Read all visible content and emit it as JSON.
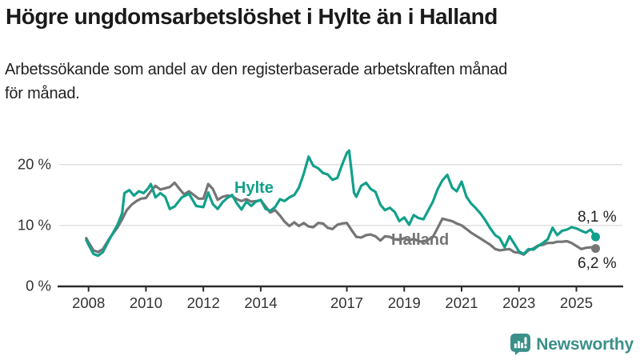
{
  "header": {
    "title": "Högre ungdomsarbetslöshet i Hylte än i Halland",
    "subtitle_lines": [
      "Arbetssökande som andel av den registerbaserade arbetskraften månad",
      "för månad."
    ]
  },
  "chart_data": {
    "type": "line",
    "unit": "%",
    "x_axis": {
      "ticks": [
        2008,
        2010,
        2012,
        2014,
        2017,
        2019,
        2021,
        2023,
        2025
      ],
      "range": [
        2007.9,
        2026.3
      ]
    },
    "y_axis": {
      "ticks": [
        {
          "value": 0,
          "label": "0 %"
        },
        {
          "value": 10,
          "label": "10 %"
        },
        {
          "value": 20,
          "label": "20 %"
        }
      ],
      "range": [
        0,
        24
      ],
      "gridlines": [
        10,
        20
      ],
      "grid_color": "#e0e0e0"
    },
    "series": [
      {
        "name": "Halland",
        "color": "#757575",
        "end_label": "6,2 %",
        "end_value": 6.2,
        "points": [
          [
            2007.92,
            7.9
          ],
          [
            2008.0,
            7.2
          ],
          [
            2008.17,
            5.9
          ],
          [
            2008.33,
            5.6
          ],
          [
            2008.5,
            6.1
          ],
          [
            2008.75,
            8.0
          ],
          [
            2009.0,
            9.6
          ],
          [
            2009.17,
            11.0
          ],
          [
            2009.33,
            12.5
          ],
          [
            2009.5,
            13.4
          ],
          [
            2009.67,
            14.0
          ],
          [
            2009.83,
            14.4
          ],
          [
            2010.0,
            14.5
          ],
          [
            2010.17,
            15.6
          ],
          [
            2010.33,
            16.5
          ],
          [
            2010.5,
            15.9
          ],
          [
            2010.67,
            16.1
          ],
          [
            2010.83,
            16.3
          ],
          [
            2011.0,
            17.0
          ],
          [
            2011.17,
            16.0
          ],
          [
            2011.33,
            15.1
          ],
          [
            2011.5,
            15.6
          ],
          [
            2011.67,
            15.0
          ],
          [
            2011.83,
            14.4
          ],
          [
            2012.0,
            14.4
          ],
          [
            2012.17,
            16.8
          ],
          [
            2012.33,
            16.0
          ],
          [
            2012.5,
            14.2
          ],
          [
            2012.67,
            14.7
          ],
          [
            2012.83,
            14.9
          ],
          [
            2013.0,
            14.8
          ],
          [
            2013.17,
            14.3
          ],
          [
            2013.33,
            14.0
          ],
          [
            2013.5,
            14.3
          ],
          [
            2013.67,
            13.9
          ],
          [
            2013.83,
            14.0
          ],
          [
            2014.0,
            14.1
          ],
          [
            2014.17,
            13.1
          ],
          [
            2014.33,
            12.1
          ],
          [
            2014.5,
            12.5
          ],
          [
            2014.67,
            11.6
          ],
          [
            2014.83,
            10.6
          ],
          [
            2015.0,
            9.9
          ],
          [
            2015.17,
            10.5
          ],
          [
            2015.33,
            9.9
          ],
          [
            2015.5,
            10.4
          ],
          [
            2015.67,
            9.8
          ],
          [
            2015.83,
            9.7
          ],
          [
            2016.0,
            10.4
          ],
          [
            2016.17,
            10.3
          ],
          [
            2016.33,
            9.6
          ],
          [
            2016.5,
            9.4
          ],
          [
            2016.67,
            10.1
          ],
          [
            2016.83,
            10.3
          ],
          [
            2017.0,
            10.4
          ],
          [
            2017.17,
            9.2
          ],
          [
            2017.33,
            8.1
          ],
          [
            2017.5,
            8.0
          ],
          [
            2017.67,
            8.4
          ],
          [
            2017.83,
            8.5
          ],
          [
            2018.0,
            8.2
          ],
          [
            2018.17,
            7.5
          ],
          [
            2018.33,
            8.2
          ],
          [
            2018.5,
            8.1
          ],
          [
            2018.67,
            7.7
          ],
          [
            2018.83,
            7.6
          ],
          [
            2019.0,
            7.9
          ],
          [
            2019.17,
            7.5
          ],
          [
            2019.33,
            7.8
          ],
          [
            2019.5,
            7.4
          ],
          [
            2019.67,
            7.3
          ],
          [
            2019.83,
            7.6
          ],
          [
            2020.0,
            8.1
          ],
          [
            2020.17,
            9.6
          ],
          [
            2020.33,
            11.1
          ],
          [
            2020.5,
            10.9
          ],
          [
            2020.67,
            10.7
          ],
          [
            2020.83,
            10.3
          ],
          [
            2021.0,
            10.0
          ],
          [
            2021.17,
            9.4
          ],
          [
            2021.33,
            8.8
          ],
          [
            2021.5,
            8.3
          ],
          [
            2021.67,
            7.8
          ],
          [
            2021.83,
            7.3
          ],
          [
            2022.0,
            6.8
          ],
          [
            2022.17,
            6.1
          ],
          [
            2022.33,
            5.9
          ],
          [
            2022.5,
            6.0
          ],
          [
            2022.67,
            6.1
          ],
          [
            2022.83,
            5.6
          ],
          [
            2023.0,
            5.5
          ],
          [
            2023.17,
            5.2
          ],
          [
            2023.33,
            5.9
          ],
          [
            2023.5,
            6.2
          ],
          [
            2023.67,
            6.7
          ],
          [
            2023.83,
            6.8
          ],
          [
            2024.0,
            7.1
          ],
          [
            2024.17,
            7.1
          ],
          [
            2024.33,
            7.3
          ],
          [
            2024.5,
            7.3
          ],
          [
            2024.67,
            7.4
          ],
          [
            2024.83,
            7.1
          ],
          [
            2025.0,
            6.6
          ],
          [
            2025.17,
            6.1
          ],
          [
            2025.33,
            6.3
          ],
          [
            2025.5,
            6.4
          ],
          [
            2025.67,
            6.2
          ]
        ]
      },
      {
        "name": "Hylte",
        "color": "#12a08b",
        "end_label": "8,1 %",
        "end_value": 8.1,
        "points": [
          [
            2007.92,
            7.6
          ],
          [
            2008.0,
            6.8
          ],
          [
            2008.17,
            5.3
          ],
          [
            2008.33,
            5.0
          ],
          [
            2008.5,
            5.6
          ],
          [
            2008.75,
            7.9
          ],
          [
            2009.0,
            10.0
          ],
          [
            2009.17,
            12.0
          ],
          [
            2009.25,
            15.3
          ],
          [
            2009.42,
            15.8
          ],
          [
            2009.58,
            14.9
          ],
          [
            2009.75,
            15.6
          ],
          [
            2009.92,
            15.3
          ],
          [
            2010.08,
            16.1
          ],
          [
            2010.17,
            16.8
          ],
          [
            2010.33,
            14.6
          ],
          [
            2010.5,
            15.3
          ],
          [
            2010.67,
            14.7
          ],
          [
            2010.83,
            12.7
          ],
          [
            2011.0,
            13.1
          ],
          [
            2011.25,
            14.6
          ],
          [
            2011.5,
            15.2
          ],
          [
            2011.75,
            13.2
          ],
          [
            2012.0,
            13.0
          ],
          [
            2012.17,
            15.4
          ],
          [
            2012.33,
            13.5
          ],
          [
            2012.5,
            12.7
          ],
          [
            2012.67,
            13.8
          ],
          [
            2012.83,
            14.5
          ],
          [
            2013.0,
            15.0
          ],
          [
            2013.17,
            13.6
          ],
          [
            2013.33,
            12.6
          ],
          [
            2013.5,
            13.9
          ],
          [
            2013.67,
            13.2
          ],
          [
            2013.83,
            13.9
          ],
          [
            2014.0,
            14.2
          ],
          [
            2014.17,
            12.7
          ],
          [
            2014.33,
            12.4
          ],
          [
            2014.5,
            13.0
          ],
          [
            2014.67,
            14.3
          ],
          [
            2014.83,
            14.0
          ],
          [
            2015.0,
            14.6
          ],
          [
            2015.17,
            15.0
          ],
          [
            2015.33,
            16.2
          ],
          [
            2015.5,
            18.5
          ],
          [
            2015.67,
            21.3
          ],
          [
            2015.83,
            19.8
          ],
          [
            2016.0,
            19.4
          ],
          [
            2016.17,
            18.6
          ],
          [
            2016.33,
            18.4
          ],
          [
            2016.5,
            17.5
          ],
          [
            2016.67,
            17.8
          ],
          [
            2016.83,
            19.9
          ],
          [
            2017.0,
            21.9
          ],
          [
            2017.08,
            22.3
          ],
          [
            2017.25,
            15.4
          ],
          [
            2017.33,
            14.7
          ],
          [
            2017.5,
            16.5
          ],
          [
            2017.67,
            17.0
          ],
          [
            2017.83,
            16.0
          ],
          [
            2018.0,
            15.5
          ],
          [
            2018.17,
            13.4
          ],
          [
            2018.33,
            12.5
          ],
          [
            2018.5,
            12.9
          ],
          [
            2018.67,
            12.2
          ],
          [
            2018.83,
            10.7
          ],
          [
            2019.0,
            11.3
          ],
          [
            2019.17,
            10.1
          ],
          [
            2019.33,
            11.7
          ],
          [
            2019.5,
            11.2
          ],
          [
            2019.67,
            11.0
          ],
          [
            2019.83,
            12.4
          ],
          [
            2020.0,
            13.9
          ],
          [
            2020.17,
            16.0
          ],
          [
            2020.33,
            17.4
          ],
          [
            2020.5,
            18.3
          ],
          [
            2020.67,
            16.2
          ],
          [
            2020.83,
            15.6
          ],
          [
            2021.0,
            17.2
          ],
          [
            2021.17,
            14.7
          ],
          [
            2021.33,
            13.6
          ],
          [
            2021.5,
            12.8
          ],
          [
            2021.67,
            11.9
          ],
          [
            2021.83,
            10.8
          ],
          [
            2022.0,
            9.5
          ],
          [
            2022.17,
            8.4
          ],
          [
            2022.33,
            7.9
          ],
          [
            2022.5,
            6.4
          ],
          [
            2022.67,
            8.2
          ],
          [
            2022.83,
            7.0
          ],
          [
            2023.0,
            5.7
          ],
          [
            2023.17,
            5.3
          ],
          [
            2023.33,
            6.1
          ],
          [
            2023.5,
            6.0
          ],
          [
            2023.67,
            6.6
          ],
          [
            2023.83,
            7.1
          ],
          [
            2024.0,
            7.7
          ],
          [
            2024.17,
            9.6
          ],
          [
            2024.33,
            8.4
          ],
          [
            2024.5,
            9.1
          ],
          [
            2024.67,
            9.3
          ],
          [
            2024.83,
            9.7
          ],
          [
            2025.0,
            9.5
          ],
          [
            2025.17,
            9.1
          ],
          [
            2025.33,
            8.8
          ],
          [
            2025.5,
            9.3
          ],
          [
            2025.67,
            8.1
          ]
        ]
      }
    ]
  },
  "footer": {
    "brand": "Newsworthy",
    "brand_color": "#3a9089"
  }
}
